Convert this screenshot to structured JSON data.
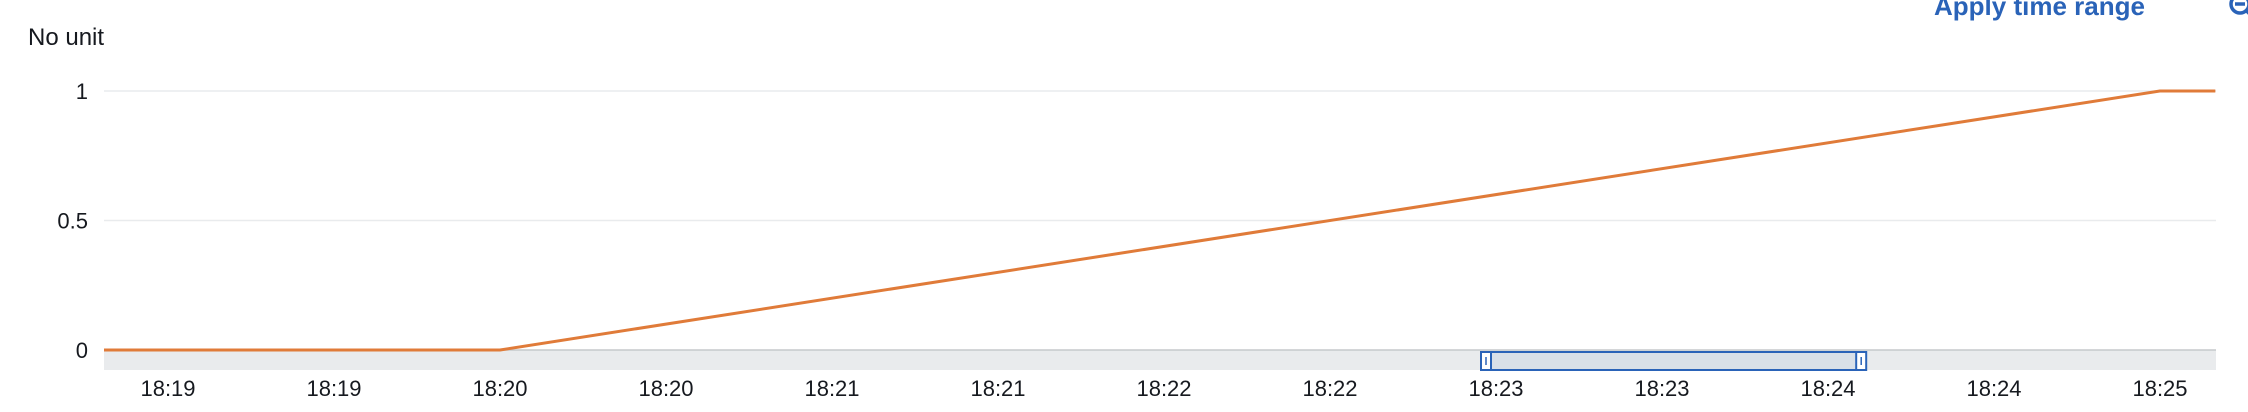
{
  "chart_header": {
    "unit_label": "No unit",
    "apply_time_range_label": "Apply time range",
    "zoom_icon": "zoom-out-icon"
  },
  "chart_data": {
    "type": "line",
    "x": [
      "18:19",
      "18:19:30",
      "18:20",
      "18:20:30",
      "18:21",
      "18:21:30",
      "18:22",
      "18:22:30",
      "18:23",
      "18:23:30",
      "18:24",
      "18:24:30",
      "18:25",
      "18:25:10"
    ],
    "x_tick_labels": [
      "18:19",
      "18:19",
      "18:20",
      "18:20",
      "18:21",
      "18:21",
      "18:22",
      "18:22",
      "18:23",
      "18:23",
      "18:24",
      "18:24",
      "18:25"
    ],
    "y_tick_labels": [
      "0",
      "0.5",
      "1"
    ],
    "ylim": [
      0,
      1
    ],
    "series": [
      {
        "color": "#e07b39",
        "points": [
          {
            "x": "18:18:48",
            "y": 0
          },
          {
            "x": "18:20",
            "y": 0
          },
          {
            "x": "18:25",
            "y": 1
          },
          {
            "x": "18:25:10",
            "y": 1
          }
        ]
      }
    ],
    "grid": true,
    "selection_brush": {
      "from": "18:23",
      "to": "18:24:06"
    },
    "colors": {
      "grid": "#e9ebed",
      "axis_band": "#e9ebed",
      "brush": "#2a63b8"
    }
  }
}
